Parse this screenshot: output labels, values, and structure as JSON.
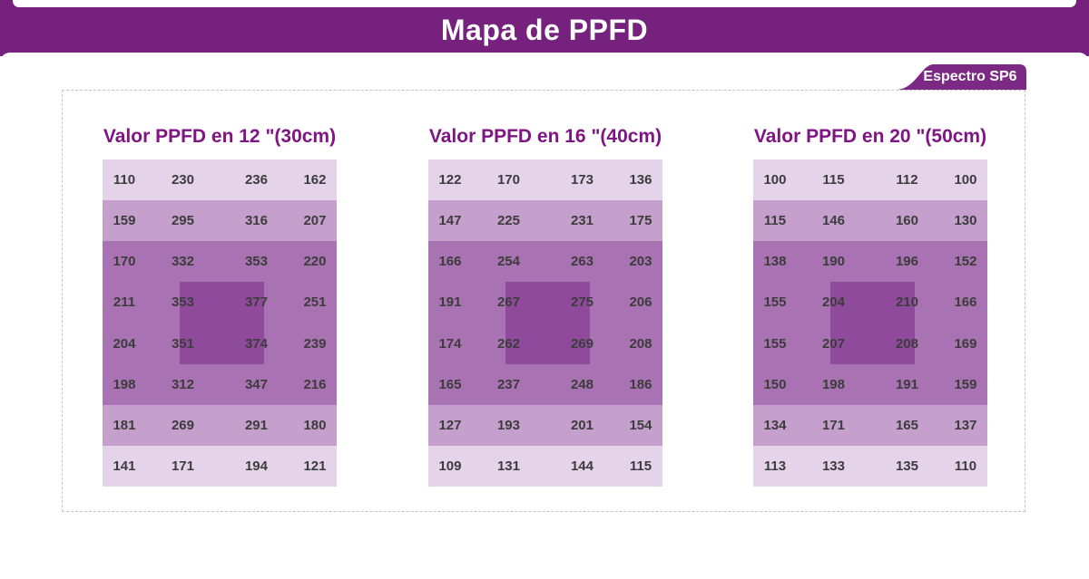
{
  "header": {
    "title": "Mapa de PPFD"
  },
  "badge": {
    "label": "Espectro SP6"
  },
  "chart_data": [
    {
      "type": "heatmap",
      "title": "Valor PPFD en 12 \"(30cm)",
      "rows": [
        [
          110,
          230,
          236,
          162
        ],
        [
          159,
          295,
          316,
          207
        ],
        [
          170,
          332,
          353,
          220
        ],
        [
          211,
          353,
          377,
          251
        ],
        [
          204,
          351,
          374,
          239
        ],
        [
          198,
          312,
          347,
          216
        ],
        [
          181,
          269,
          291,
          180
        ],
        [
          141,
          171,
          194,
          121
        ]
      ]
    },
    {
      "type": "heatmap",
      "title": "Valor PPFD en 16 \"(40cm)",
      "rows": [
        [
          122,
          170,
          173,
          136
        ],
        [
          147,
          225,
          231,
          175
        ],
        [
          166,
          254,
          263,
          203
        ],
        [
          191,
          267,
          275,
          206
        ],
        [
          174,
          262,
          269,
          208
        ],
        [
          165,
          237,
          248,
          186
        ],
        [
          127,
          193,
          201,
          154
        ],
        [
          109,
          131,
          144,
          115
        ]
      ]
    },
    {
      "type": "heatmap",
      "title": "Valor PPFD en 20 \"(50cm)",
      "rows": [
        [
          100,
          115,
          112,
          100
        ],
        [
          115,
          146,
          160,
          130
        ],
        [
          138,
          190,
          196,
          152
        ],
        [
          155,
          204,
          210,
          166
        ],
        [
          155,
          207,
          208,
          169
        ],
        [
          150,
          198,
          191,
          159
        ],
        [
          134,
          171,
          165,
          137
        ],
        [
          113,
          133,
          135,
          110
        ]
      ]
    }
  ],
  "style": {
    "banner_bg": "#75217d",
    "badge_bg": "#7c2984",
    "title_color": "#7f1583",
    "value_color": "#3c3c3c",
    "dash_color": "#c4c4c4",
    "band_light": "#e5d3ea",
    "band_medium": "#c5a0cc",
    "band_dark": "#a972b2",
    "hotspot": "#8f4a9c",
    "row_bands": [
      "light",
      "medium",
      "dark",
      "dark",
      "dark",
      "dark",
      "medium",
      "light"
    ]
  }
}
